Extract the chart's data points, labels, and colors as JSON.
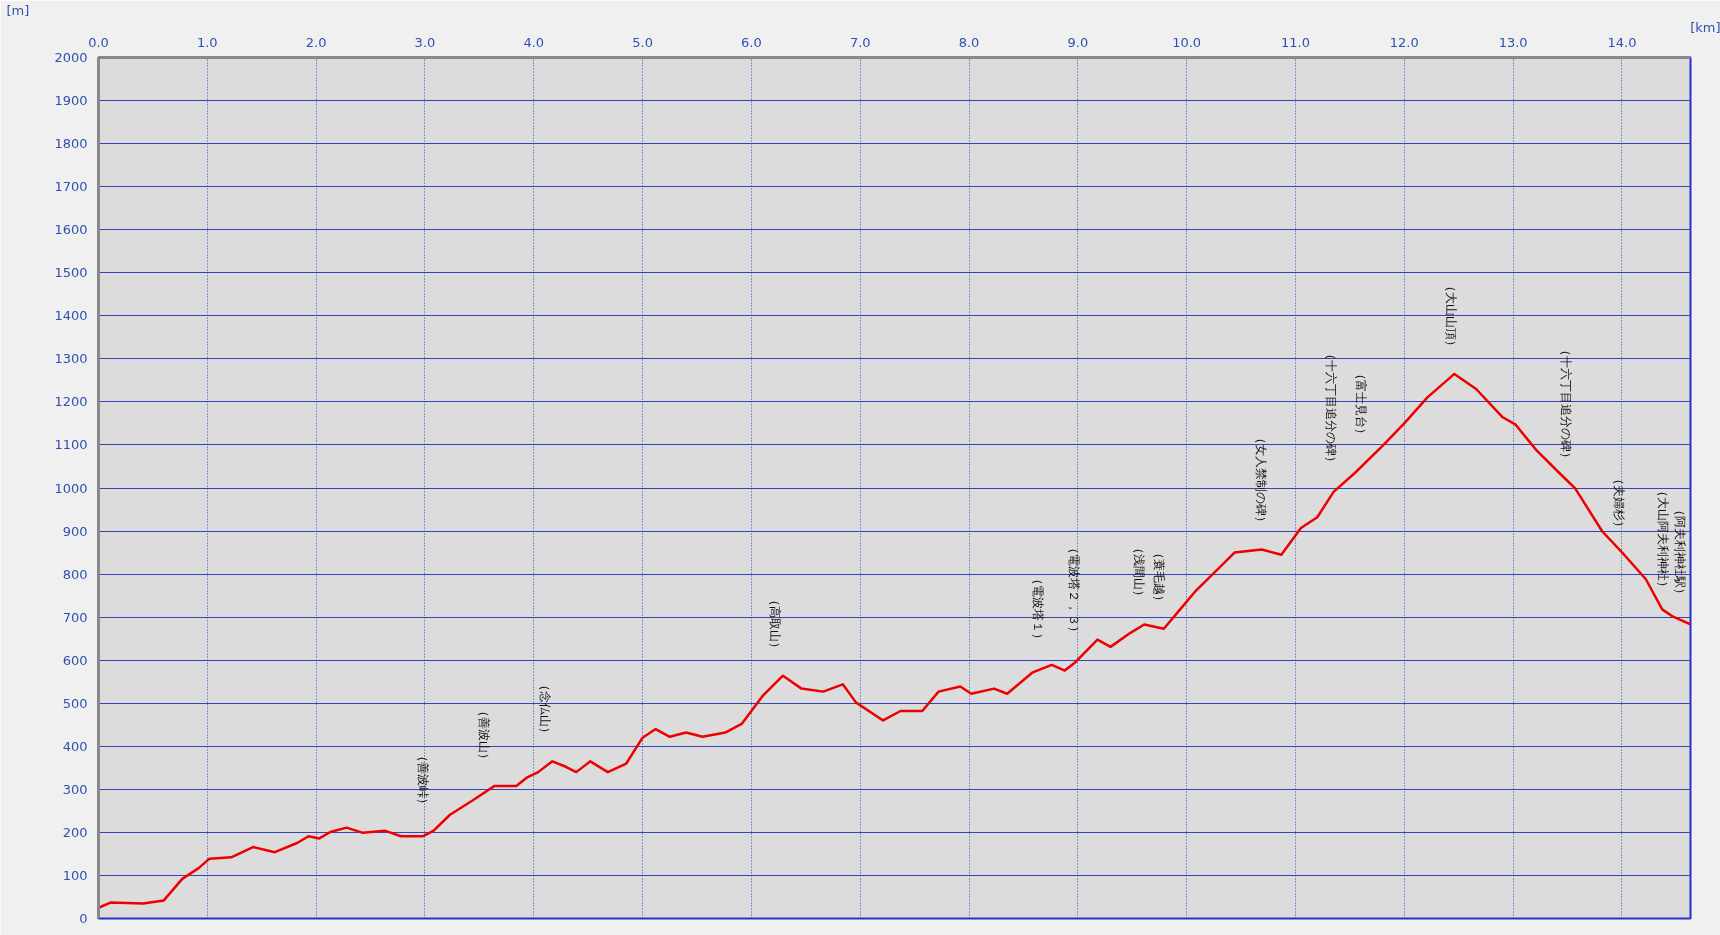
{
  "chart_data": {
    "type": "line",
    "xlabel": "[km]",
    "ylabel": "[m]",
    "x": [
      0,
      0.11,
      0.41,
      0.6,
      0.77,
      0.92,
      1.02,
      1.22,
      1.42,
      1.62,
      1.83,
      1.93,
      2.03,
      2.13,
      2.28,
      2.43,
      2.63,
      2.78,
      2.98,
      3.08,
      3.23,
      3.43,
      3.64,
      3.84,
      3.94,
      4.04,
      4.17,
      4.29,
      4.39,
      4.52,
      4.68,
      4.85,
      5.0,
      5.12,
      5.25,
      5.4,
      5.55,
      5.76,
      5.91,
      6.11,
      6.29,
      6.46,
      6.66,
      6.84,
      6.96,
      7.21,
      7.37,
      7.57,
      7.72,
      7.92,
      8.02,
      8.23,
      8.35,
      8.43,
      8.58,
      8.76,
      8.88,
      8.98,
      9.18,
      9.3,
      9.48,
      9.61,
      9.79,
      9.94,
      10.09,
      10.24,
      10.44,
      10.69,
      10.87,
      11.05,
      11.2,
      11.35,
      11.55,
      11.8,
      12.01,
      12.21,
      12.46,
      12.66,
      12.9,
      13.02,
      13.22,
      13.42,
      13.57,
      13.82,
      14.02,
      14.22,
      14.37,
      14.47,
      14.63
    ],
    "values": [
      25,
      37,
      35,
      42,
      92,
      117,
      139,
      142,
      166,
      154,
      176,
      191,
      186,
      201,
      211,
      199,
      204,
      191,
      191,
      204,
      241,
      273,
      308,
      308,
      328,
      340,
      365,
      353,
      340,
      365,
      340,
      360,
      420,
      440,
      422,
      432,
      422,
      432,
      452,
      519,
      564,
      534,
      527,
      544,
      502,
      460,
      482,
      482,
      527,
      539,
      522,
      534,
      522,
      539,
      571,
      589,
      576,
      596,
      648,
      631,
      663,
      683,
      673,
      718,
      763,
      800,
      850,
      857,
      845,
      907,
      932,
      991,
      1036,
      1098,
      1153,
      1210,
      1265,
      1230,
      1165,
      1148,
      1086,
      1036,
      999,
      899,
      845,
      788,
      718,
      701,
      683
    ],
    "color": "#ee0000",
    "xlim": [
      0,
      14.63
    ],
    "ylim": [
      0,
      2000
    ],
    "xticks": [
      {
        "value": 0,
        "label": "0.0"
      },
      {
        "value": 1,
        "label": "1.0"
      },
      {
        "value": 2,
        "label": "2.0"
      },
      {
        "value": 3,
        "label": "3.0"
      },
      {
        "value": 4,
        "label": "4.0"
      },
      {
        "value": 5,
        "label": "5.0"
      },
      {
        "value": 6,
        "label": "6.0"
      },
      {
        "value": 7,
        "label": "7.0"
      },
      {
        "value": 8,
        "label": "8.0"
      },
      {
        "value": 9,
        "label": "9.0"
      },
      {
        "value": 10,
        "label": "10.0"
      },
      {
        "value": 11,
        "label": "11.0"
      },
      {
        "value": 12,
        "label": "12.0"
      },
      {
        "value": 13,
        "label": "13.0"
      },
      {
        "value": 14,
        "label": "14.0"
      }
    ],
    "yticks": [
      0,
      100,
      200,
      300,
      400,
      500,
      600,
      700,
      800,
      900,
      1000,
      1100,
      1200,
      1300,
      1400,
      1500,
      1600,
      1700,
      1800,
      1900,
      2000
    ],
    "grid": true,
    "annotations": [
      {
        "text": "（善波峠）",
        "x": 3.04,
        "y": 200
      },
      {
        "text": "（善波山）",
        "x": 3.6,
        "y": 305
      },
      {
        "text": "（念仏山）",
        "x": 4.16,
        "y": 365
      },
      {
        "text": "（高取山）",
        "x": 6.27,
        "y": 564
      },
      {
        "text": "（電波塔１）",
        "x": 8.69,
        "y": 585
      },
      {
        "text": "（電波塔２，３）",
        "x": 9.02,
        "y": 600
      },
      {
        "text": "（浅間山）",
        "x": 9.62,
        "y": 683
      },
      {
        "text": "（蓑毛越）",
        "x": 9.8,
        "y": 673
      },
      {
        "text": "（女人禁制の碑）",
        "x": 10.74,
        "y": 857
      },
      {
        "text": "（十六丁目追分の碑）",
        "x": 11.38,
        "y": 995
      },
      {
        "text": "（富士見台）",
        "x": 11.66,
        "y": 1060
      },
      {
        "text": "（大山山頂）",
        "x": 12.48,
        "y": 1265
      },
      {
        "text": "（十六丁目追分の碑）",
        "x": 13.54,
        "y": 1005
      },
      {
        "text": "（夫婦杉）",
        "x": 14.03,
        "y": 845
      },
      {
        "text": "（大山阿夫利神社）",
        "x": 14.43,
        "y": 705
      },
      {
        "text": "（阿夫利神社駅）",
        "x": 14.59,
        "y": 688
      }
    ]
  }
}
